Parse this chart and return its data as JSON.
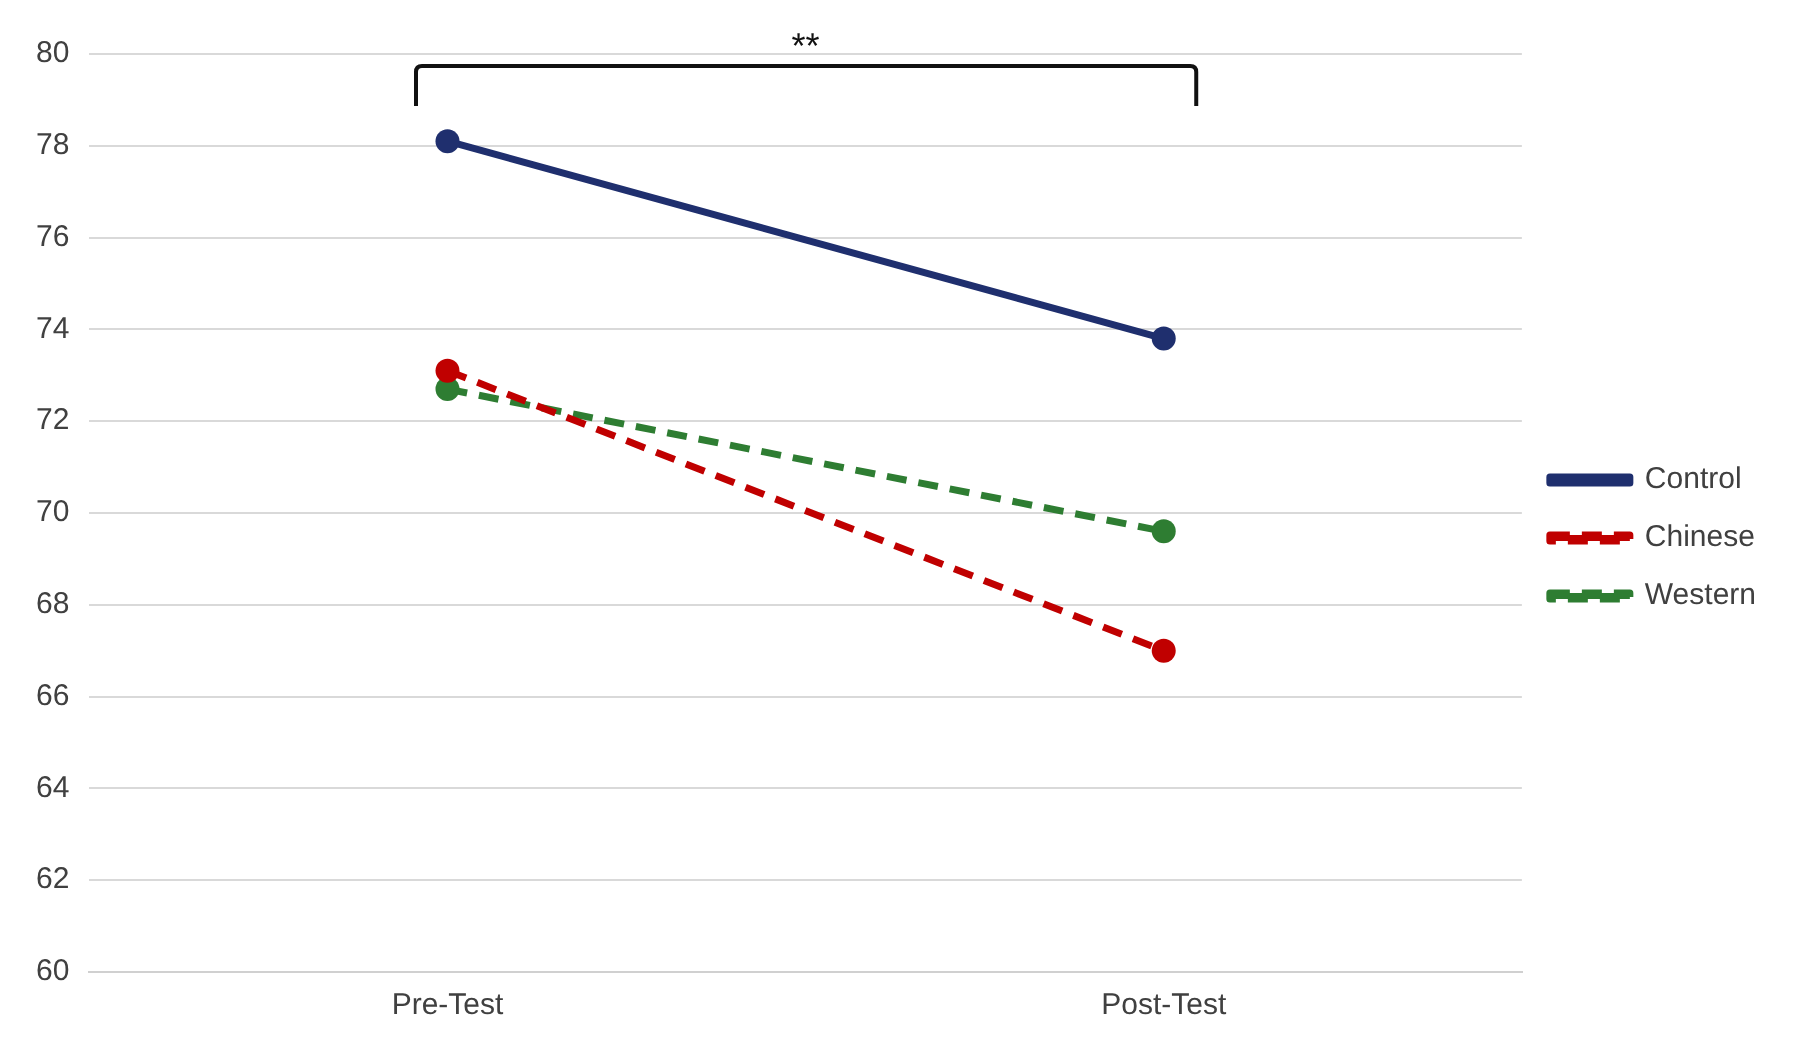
{
  "chart_data": {
    "type": "line",
    "categories": [
      "Pre-Test",
      "Post-Test"
    ],
    "series": [
      {
        "name": "Control",
        "color": "#1f2f6e",
        "values": [
          78.1,
          73.8
        ],
        "line_style": "solid"
      },
      {
        "name": "Chinese",
        "color": "#c00000",
        "values": [
          73.1,
          67.0
        ],
        "line_style": "dashed"
      },
      {
        "name": "Western",
        "color": "#2e7d32",
        "values": [
          72.7,
          69.6
        ],
        "line_style": "dashed"
      }
    ],
    "ylim": [
      60,
      80
    ],
    "yticks": [
      60,
      62,
      64,
      66,
      68,
      70,
      72,
      74,
      76,
      78,
      80
    ],
    "grid": "y",
    "legend": "right",
    "marker": "circle",
    "annotations": [
      "**"
    ]
  }
}
